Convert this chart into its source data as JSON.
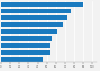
{
  "values": [
    90,
    77,
    72,
    68,
    61,
    56,
    54,
    54,
    46
  ],
  "bar_color": "#1a7abf",
  "background_color": "#f2f2f2",
  "xlim": [
    0,
    105
  ],
  "bar_height": 0.72,
  "figsize": [
    1.0,
    0.71
  ],
  "xticks": [
    0,
    10,
    20,
    30,
    40,
    50,
    60,
    70,
    80,
    90,
    100
  ]
}
